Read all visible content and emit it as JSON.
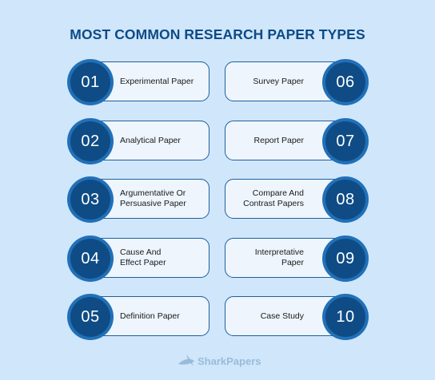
{
  "title": "MOST COMMON RESEARCH PAPER TYPES",
  "left_items": [
    {
      "number": "01",
      "line1": "Experimental Paper",
      "line2": ""
    },
    {
      "number": "02",
      "line1": "Analytical Paper",
      "line2": ""
    },
    {
      "number": "03",
      "line1": "Argumentative Or",
      "line2": "Persuasive Paper"
    },
    {
      "number": "04",
      "line1": "Cause And",
      "line2": "Effect Paper"
    },
    {
      "number": "05",
      "line1": "Definition Paper",
      "line2": ""
    }
  ],
  "right_items": [
    {
      "number": "06",
      "line1": "Survey Paper",
      "line2": ""
    },
    {
      "number": "07",
      "line1": "Report Paper",
      "line2": ""
    },
    {
      "number": "08",
      "line1": "Compare And",
      "line2": "Contrast Papers"
    },
    {
      "number": "09",
      "line1": "Interpretative Paper",
      "line2": ""
    },
    {
      "number": "10",
      "line1": "Case Study",
      "line2": ""
    }
  ],
  "logo": {
    "text": "SharkPapers",
    "icon": "shark-icon"
  },
  "colors": {
    "background": "#cfe6fb",
    "title": "#0e4a86",
    "circle_outer": "#2170b8",
    "circle_inner": "#0f4c85"
  }
}
